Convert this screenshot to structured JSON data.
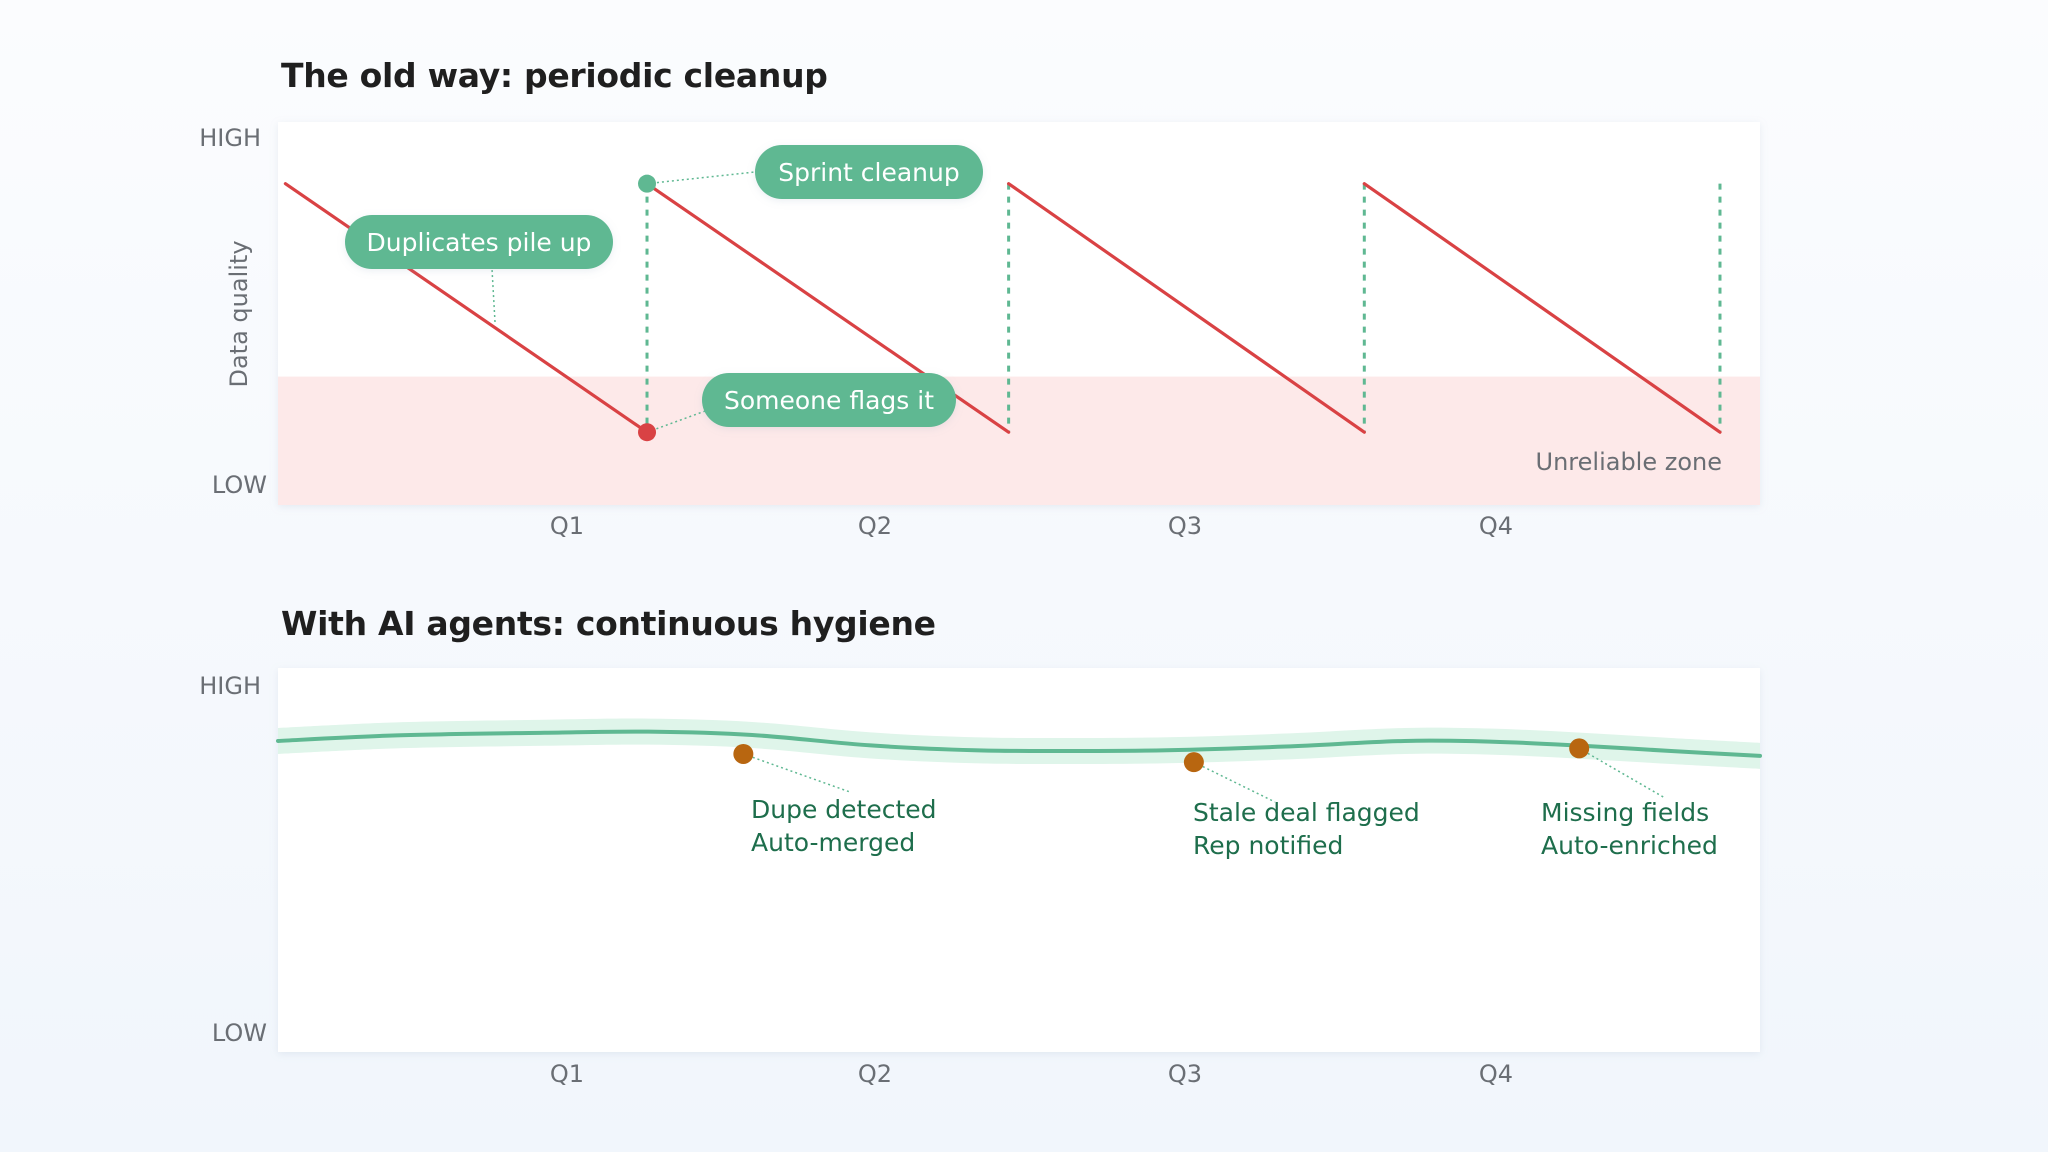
{
  "colors": {
    "sawtooth": "#d94244",
    "green": "#5fb892",
    "green_band": "#dff5ea",
    "unreliable_zone": "#fde9e9",
    "event_dot": "#b86610",
    "annotation_text": "#1e6e4c",
    "axis_text": "#6a6e74"
  },
  "chart_data": [
    {
      "type": "line",
      "title": "The old way: periodic cleanup",
      "ylabel": "Data quality",
      "y_tick_labels": {
        "high": "HIGH",
        "low": "LOW"
      },
      "categories": [
        "Q1",
        "Q2",
        "Q3",
        "Q4"
      ],
      "xlim": [
        0,
        1
      ],
      "ylim": [
        0,
        1
      ],
      "grid": false,
      "zone": {
        "label": "Unreliable zone",
        "y_from": 0,
        "y_to": 0.33
      },
      "series": [
        {
          "segments": [
            [
              [
                0.005,
                0.85
              ],
              [
                0.249,
                0.18
              ]
            ],
            [
              [
                0.249,
                0.85
              ],
              [
                0.493,
                0.18
              ]
            ],
            [
              [
                0.493,
                0.85
              ],
              [
                0.733,
                0.18
              ]
            ],
            [
              [
                0.733,
                0.85
              ],
              [
                0.973,
                0.18
              ]
            ]
          ],
          "cleanup_resets": [
            0.249,
            0.493,
            0.733,
            0.973
          ]
        }
      ],
      "annotations": [
        {
          "label": "Duplicates pile up",
          "point": [
            0.147,
            0.49
          ]
        },
        {
          "label": "Sprint cleanup",
          "point": [
            0.249,
            0.85
          ]
        },
        {
          "label": "Someone flags it",
          "point": [
            0.249,
            0.18
          ]
        }
      ]
    },
    {
      "type": "area",
      "title": "With AI agents: continuous hygiene",
      "y_tick_labels": {
        "high": "HIGH",
        "low": "LOW"
      },
      "categories": [
        "Q1",
        "Q2",
        "Q3",
        "Q4"
      ],
      "xlim": [
        0,
        1
      ],
      "ylim": [
        0,
        1
      ],
      "grid": false,
      "series": [
        {
          "x": [
            0.0,
            0.08,
            0.18,
            0.25,
            0.32,
            0.4,
            0.47,
            0.53,
            0.6,
            0.68,
            0.76,
            0.82,
            0.88,
            0.94,
            1.0
          ],
          "y": [
            0.82,
            0.835,
            0.842,
            0.845,
            0.836,
            0.808,
            0.795,
            0.793,
            0.795,
            0.805,
            0.82,
            0.818,
            0.807,
            0.793,
            0.78
          ],
          "band": 0.07
        }
      ],
      "annotations": [
        {
          "lines": [
            "Dupe detected",
            "Auto-merged"
          ],
          "point": [
            0.314,
            0.785
          ]
        },
        {
          "lines": [
            "Stale deal flagged",
            "Rep notified"
          ],
          "point": [
            0.618,
            0.763
          ]
        },
        {
          "lines": [
            "Missing fields",
            "Auto-enriched"
          ],
          "point": [
            0.878,
            0.8
          ]
        }
      ]
    }
  ]
}
